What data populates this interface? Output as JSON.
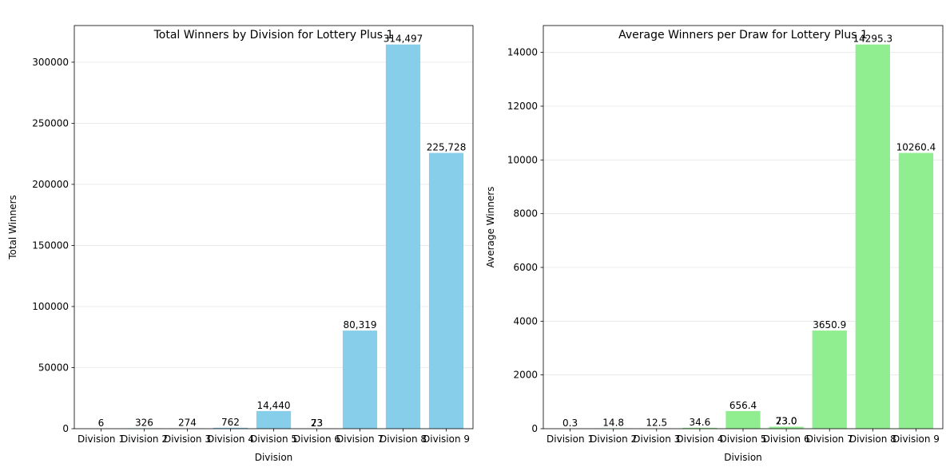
{
  "chart_data": [
    {
      "type": "bar",
      "title": "Total Winners by Division for Lottery Plus 1",
      "xlabel": "Division",
      "ylabel": "Total Winners",
      "categories": [
        "Division 1",
        "Division 2",
        "Division 3",
        "Division 4",
        "Division 5",
        "Division 6",
        "Division 7",
        "Division 8",
        "Division 9"
      ],
      "values": [
        6,
        326,
        274,
        762,
        14440,
        73,
        80319,
        314497,
        225728
      ],
      "data_labels": [
        "6",
        "326",
        "274",
        "762",
        "14,440",
        "73",
        "80,319",
        "314,497",
        "225,728"
      ],
      "extra_label": {
        "text": "23",
        "after_category": "Division 5"
      },
      "ylim": [
        0,
        330000
      ],
      "yticks": [
        0,
        50000,
        100000,
        150000,
        200000,
        250000,
        300000
      ],
      "grid": "y",
      "color": "#87ceeb"
    },
    {
      "type": "bar",
      "title": "Average Winners per Draw for Lottery Plus 1",
      "xlabel": "Division",
      "ylabel": "Average Winners",
      "categories": [
        "Division 1",
        "Division 2",
        "Division 3",
        "Division 4",
        "Division 5",
        "Division 6",
        "Division 7",
        "Division 8",
        "Division 9"
      ],
      "values": [
        0.3,
        14.8,
        12.5,
        34.6,
        656.4,
        73.0,
        3650.9,
        14295.3,
        10260.4
      ],
      "data_labels": [
        "0.3",
        "14.8",
        "12.5",
        "34.6",
        "656.4",
        "73.0",
        "3650.9",
        "14295.3",
        "10260.4"
      ],
      "extra_label": {
        "text": "23.0",
        "after_category": "Division 5"
      },
      "ylim": [
        0,
        15000
      ],
      "yticks": [
        0,
        2000,
        4000,
        6000,
        8000,
        10000,
        12000,
        14000
      ],
      "grid": "y",
      "color": "#90ee90"
    }
  ]
}
